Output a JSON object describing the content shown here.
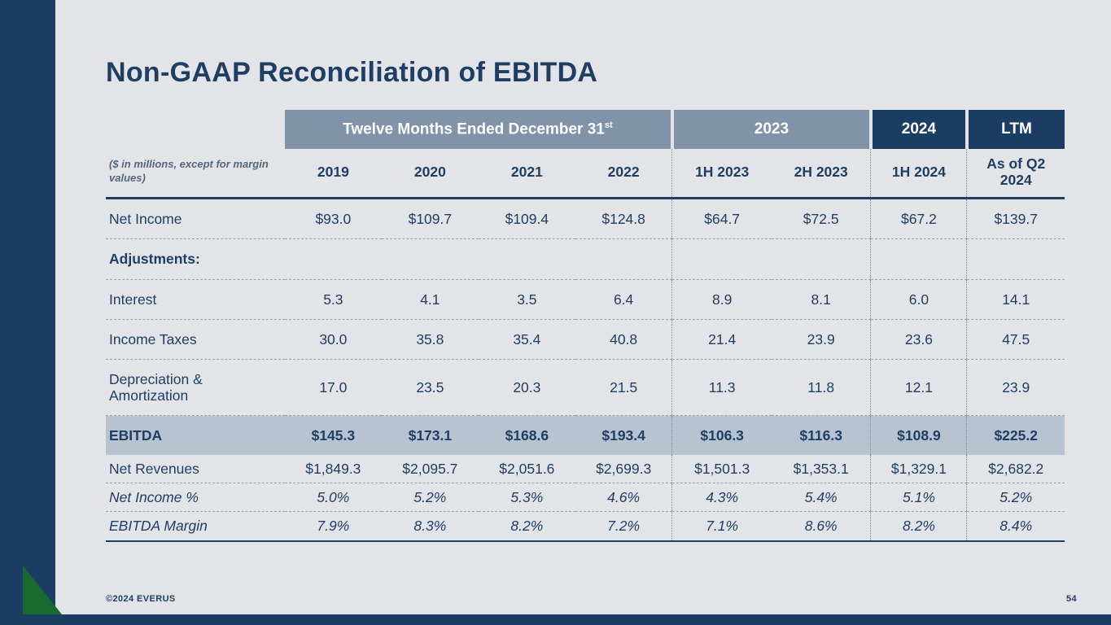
{
  "slide": {
    "title": "Non-GAAP Reconciliation of EBITDA",
    "footer": {
      "copyright": "©2024 EVERUS",
      "page_number": "54"
    }
  },
  "table": {
    "note": "($ in millions, except for margin values)",
    "group_headers": [
      {
        "label": "Twelve Months Ended December 31",
        "superscript": "st",
        "span": 4,
        "variant": "gray"
      },
      {
        "label": "2023",
        "superscript": "",
        "span": 2,
        "variant": "gray"
      },
      {
        "label": "2024",
        "superscript": "",
        "span": 1,
        "variant": "navy"
      },
      {
        "label": "LTM",
        "superscript": "",
        "span": 1,
        "variant": "navy"
      }
    ],
    "columns": [
      "2019",
      "2020",
      "2021",
      "2022",
      "1H 2023",
      "2H 2023",
      "1H 2024",
      "As of Q2 2024"
    ],
    "separator_columns": [
      4,
      6,
      7
    ],
    "rows": [
      {
        "label": "Net Income",
        "emphasis": "data",
        "values": [
          "$93.0",
          "$109.7",
          "$109.4",
          "$124.8",
          "$64.7",
          "$72.5",
          "$67.2",
          "$139.7"
        ]
      },
      {
        "label": "Adjustments:",
        "emphasis": "section",
        "values": [
          "",
          "",
          "",
          "",
          "",
          "",
          "",
          ""
        ]
      },
      {
        "label": "Interest",
        "emphasis": "data",
        "values": [
          "5.3",
          "4.1",
          "3.5",
          "6.4",
          "8.9",
          "8.1",
          "6.0",
          "14.1"
        ]
      },
      {
        "label": "Income Taxes",
        "emphasis": "data",
        "values": [
          "30.0",
          "35.8",
          "35.4",
          "40.8",
          "21.4",
          "23.9",
          "23.6",
          "47.5"
        ]
      },
      {
        "label": "Depreciation & Amortization",
        "emphasis": "data",
        "values": [
          "17.0",
          "23.5",
          "20.3",
          "21.5",
          "11.3",
          "11.8",
          "12.1",
          "23.9"
        ]
      },
      {
        "label": "EBITDA",
        "emphasis": "highlight",
        "values": [
          "$145.3",
          "$173.1",
          "$168.6",
          "$193.4",
          "$106.3",
          "$116.3",
          "$108.9",
          "$225.2"
        ]
      },
      {
        "label": "Net Revenues",
        "emphasis": "compact",
        "values": [
          "$1,849.3",
          "$2,095.7",
          "$2,051.6",
          "$2,699.3",
          "$1,501.3",
          "$1,353.1",
          "$1,329.1",
          "$2,682.2"
        ]
      },
      {
        "label": "Net Income %",
        "emphasis": "compact-italic",
        "values": [
          "5.0%",
          "5.2%",
          "5.3%",
          "4.6%",
          "4.3%",
          "5.4%",
          "5.1%",
          "5.2%"
        ]
      },
      {
        "label": "EBITDA Margin",
        "emphasis": "compact-italic",
        "values": [
          "7.9%",
          "8.3%",
          "8.2%",
          "7.2%",
          "7.1%",
          "8.6%",
          "8.2%",
          "8.4%"
        ]
      }
    ]
  },
  "colors": {
    "navy": "#1c3d63",
    "slate": "#8093a9",
    "background": "#e3e4e8",
    "highlight_row": "#b7c3d1",
    "green_accent": "#186a2f",
    "text": "#1e3e64"
  }
}
